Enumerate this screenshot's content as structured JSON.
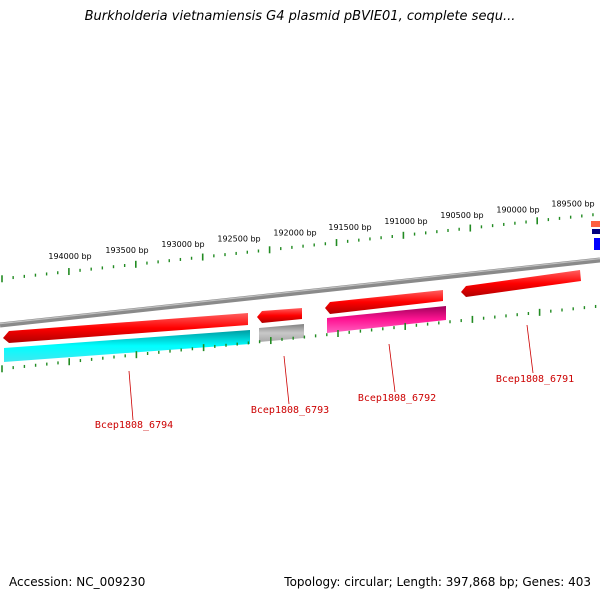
{
  "title": "Burkholderia vietnamiensis G4 plasmid pBVIE01, complete sequ...",
  "footer": {
    "accession": "Accession: NC_009230",
    "summary": "Topology: circular; Length: 397,868 bp; Genes: 403"
  },
  "colors": {
    "backbone": "#808080",
    "tick": "#228b22",
    "forward_gene": "#ff0000",
    "cds_cyan": "#00ffff",
    "cds_gray": "#b0b0b0",
    "cds_magenta": "#ff1493",
    "label": "#cc0000"
  },
  "tick_labels": [
    "194000 bp",
    "193500 bp",
    "193000 bp",
    "192500 bp",
    "192000 bp",
    "191500 bp",
    "191000 bp",
    "190500 bp",
    "190000 bp",
    "189500 bp"
  ],
  "genes": [
    {
      "label": "Bcep1808_6794",
      "feature_color": "cds_cyan"
    },
    {
      "label": "Bcep1808_6793",
      "feature_color": "cds_gray"
    },
    {
      "label": "Bcep1808_6792",
      "feature_color": "cds_magenta"
    },
    {
      "label": "Bcep1808_6791",
      "feature_color": "forward_gene"
    }
  ]
}
